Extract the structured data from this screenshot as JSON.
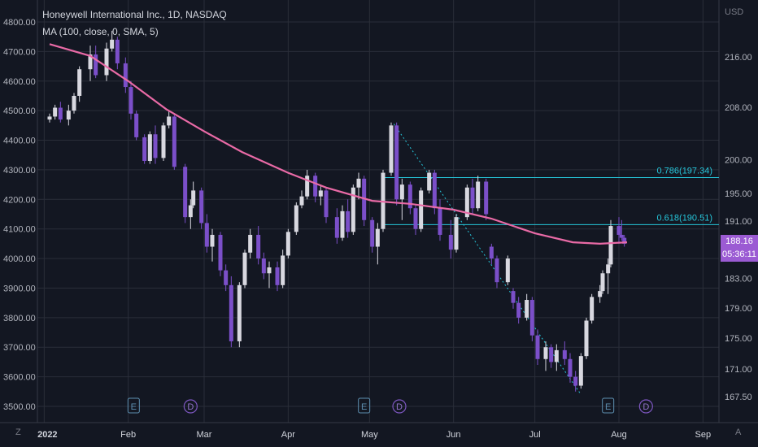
{
  "chart_data": {
    "type": "candlestick",
    "title": "Honeywell International Inc., 1D, NASDAQ",
    "indicator": "MA (100, close, 0, SMA, 5)",
    "currency_label": "USD",
    "left_axis": {
      "ticks": [
        "4800.00",
        "4700.00",
        "4600.00",
        "4500.00",
        "4400.00",
        "4300.00",
        "4200.00",
        "4100.00",
        "4000.00",
        "3900.00",
        "3800.00",
        "3700.00",
        "3600.00",
        "3500.00"
      ],
      "range": [
        3480,
        4840
      ]
    },
    "right_axis": {
      "ticks": [
        "216.00",
        "208.00",
        "200.00",
        "195.00",
        "191.00",
        "183.00",
        "179.00",
        "175.00",
        "171.00",
        "167.50"
      ],
      "scale": "log"
    },
    "x_axis": {
      "ticks": [
        "2022",
        "Feb",
        "Mar",
        "Apr",
        "May",
        "Jun",
        "Jul",
        "Aug",
        "Sep"
      ]
    },
    "current_price": "188.16",
    "countdown": "05:36:11",
    "fib_levels": [
      {
        "label": "0.786(197.34)",
        "value": 197.34
      },
      {
        "label": "0.618(190.51)",
        "value": 190.51
      }
    ],
    "event_markers": [
      {
        "type": "E",
        "date": "2022-02-03"
      },
      {
        "type": "D",
        "date": "2022-02-24"
      },
      {
        "type": "E",
        "date": "2022-04-29"
      },
      {
        "type": "D",
        "date": "2022-05-12"
      },
      {
        "type": "E",
        "date": "2022-07-28"
      },
      {
        "type": "D",
        "date": "2022-08-11"
      }
    ],
    "ma_line": [
      {
        "date": "2022-01-03",
        "value": 4725
      },
      {
        "date": "2022-01-18",
        "value": 4685
      },
      {
        "date": "2022-02-01",
        "value": 4600
      },
      {
        "date": "2022-02-15",
        "value": 4505
      },
      {
        "date": "2022-03-01",
        "value": 4430
      },
      {
        "date": "2022-03-15",
        "value": 4360
      },
      {
        "date": "2022-04-01",
        "value": 4290
      },
      {
        "date": "2022-04-15",
        "value": 4240
      },
      {
        "date": "2022-05-02",
        "value": 4195
      },
      {
        "date": "2022-05-16",
        "value": 4185
      },
      {
        "date": "2022-06-01",
        "value": 4165
      },
      {
        "date": "2022-06-15",
        "value": 4135
      },
      {
        "date": "2022-07-01",
        "value": 4085
      },
      {
        "date": "2022-07-15",
        "value": 4055
      },
      {
        "date": "2022-07-25",
        "value": 4050
      },
      {
        "date": "2022-08-04",
        "value": 4055
      }
    ],
    "candles": [
      {
        "date": "2022-01-03",
        "o": 4470,
        "h": 4490,
        "l": 4460,
        "c": 4480
      },
      {
        "date": "2022-01-05",
        "o": 4480,
        "h": 4520,
        "l": 4470,
        "c": 4510
      },
      {
        "date": "2022-01-07",
        "o": 4510,
        "h": 4530,
        "l": 4460,
        "c": 4470
      },
      {
        "date": "2022-01-10",
        "o": 4470,
        "h": 4520,
        "l": 4450,
        "c": 4500
      },
      {
        "date": "2022-01-12",
        "o": 4500,
        "h": 4560,
        "l": 4490,
        "c": 4550
      },
      {
        "date": "2022-01-14",
        "o": 4550,
        "h": 4650,
        "l": 4530,
        "c": 4640
      },
      {
        "date": "2022-01-18",
        "o": 4640,
        "h": 4720,
        "l": 4600,
        "c": 4690
      },
      {
        "date": "2022-01-20",
        "o": 4690,
        "h": 4720,
        "l": 4610,
        "c": 4620
      },
      {
        "date": "2022-01-24",
        "o": 4620,
        "h": 4730,
        "l": 4600,
        "c": 4710
      },
      {
        "date": "2022-01-26",
        "o": 4710,
        "h": 4770,
        "l": 4700,
        "c": 4740
      },
      {
        "date": "2022-01-28",
        "o": 4740,
        "h": 4750,
        "l": 4640,
        "c": 4660
      },
      {
        "date": "2022-01-31",
        "o": 4660,
        "h": 4680,
        "l": 4560,
        "c": 4580
      },
      {
        "date": "2022-02-02",
        "o": 4580,
        "h": 4600,
        "l": 4470,
        "c": 4490
      },
      {
        "date": "2022-02-04",
        "o": 4490,
        "h": 4500,
        "l": 4400,
        "c": 4410
      },
      {
        "date": "2022-02-07",
        "o": 4410,
        "h": 4420,
        "l": 4320,
        "c": 4330
      },
      {
        "date": "2022-02-09",
        "o": 4330,
        "h": 4430,
        "l": 4320,
        "c": 4420
      },
      {
        "date": "2022-02-11",
        "o": 4420,
        "h": 4450,
        "l": 4320,
        "c": 4340
      },
      {
        "date": "2022-02-14",
        "o": 4340,
        "h": 4460,
        "l": 4330,
        "c": 4450
      },
      {
        "date": "2022-02-16",
        "o": 4450,
        "h": 4500,
        "l": 4440,
        "c": 4480
      },
      {
        "date": "2022-02-18",
        "o": 4480,
        "h": 4490,
        "l": 4300,
        "c": 4310
      },
      {
        "date": "2022-02-22",
        "o": 4310,
        "h": 4320,
        "l": 4120,
        "c": 4140
      },
      {
        "date": "2022-02-24",
        "o": 4140,
        "h": 4200,
        "l": 4100,
        "c": 4180
      },
      {
        "date": "2022-02-25",
        "o": 4180,
        "h": 4260,
        "l": 4170,
        "c": 4230
      },
      {
        "date": "2022-02-28",
        "o": 4230,
        "h": 4240,
        "l": 4100,
        "c": 4120
      },
      {
        "date": "2022-03-02",
        "o": 4120,
        "h": 4150,
        "l": 4020,
        "c": 4040
      },
      {
        "date": "2022-03-04",
        "o": 4040,
        "h": 4100,
        "l": 3990,
        "c": 4080
      },
      {
        "date": "2022-03-07",
        "o": 4080,
        "h": 4090,
        "l": 3940,
        "c": 3960
      },
      {
        "date": "2022-03-09",
        "o": 3960,
        "h": 3980,
        "l": 3890,
        "c": 3910
      },
      {
        "date": "2022-03-11",
        "o": 3910,
        "h": 3940,
        "l": 3700,
        "c": 3720
      },
      {
        "date": "2022-03-14",
        "o": 3720,
        "h": 3920,
        "l": 3700,
        "c": 3910
      },
      {
        "date": "2022-03-16",
        "o": 3910,
        "h": 4030,
        "l": 3900,
        "c": 4020
      },
      {
        "date": "2022-03-18",
        "o": 4020,
        "h": 4100,
        "l": 4000,
        "c": 4080
      },
      {
        "date": "2022-03-21",
        "o": 4080,
        "h": 4110,
        "l": 3980,
        "c": 4000
      },
      {
        "date": "2022-03-23",
        "o": 4000,
        "h": 4020,
        "l": 3930,
        "c": 3950
      },
      {
        "date": "2022-03-25",
        "o": 3950,
        "h": 3990,
        "l": 3900,
        "c": 3970
      },
      {
        "date": "2022-03-28",
        "o": 3970,
        "h": 3990,
        "l": 3890,
        "c": 3910
      },
      {
        "date": "2022-03-30",
        "o": 3910,
        "h": 4030,
        "l": 3900,
        "c": 4010
      },
      {
        "date": "2022-04-01",
        "o": 4010,
        "h": 4100,
        "l": 4000,
        "c": 4090
      },
      {
        "date": "2022-04-04",
        "o": 4090,
        "h": 4190,
        "l": 4080,
        "c": 4180
      },
      {
        "date": "2022-04-06",
        "o": 4180,
        "h": 4230,
        "l": 4170,
        "c": 4210
      },
      {
        "date": "2022-04-08",
        "o": 4210,
        "h": 4300,
        "l": 4200,
        "c": 4280
      },
      {
        "date": "2022-04-11",
        "o": 4280,
        "h": 4290,
        "l": 4190,
        "c": 4210
      },
      {
        "date": "2022-04-13",
        "o": 4210,
        "h": 4250,
        "l": 4180,
        "c": 4230
      },
      {
        "date": "2022-04-15",
        "o": 4230,
        "h": 4240,
        "l": 4120,
        "c": 4140
      },
      {
        "date": "2022-04-19",
        "o": 4140,
        "h": 4170,
        "l": 4050,
        "c": 4070
      },
      {
        "date": "2022-04-21",
        "o": 4070,
        "h": 4180,
        "l": 4060,
        "c": 4160
      },
      {
        "date": "2022-04-23",
        "o": 4160,
        "h": 4200,
        "l": 4070,
        "c": 4090
      },
      {
        "date": "2022-04-25",
        "o": 4090,
        "h": 4250,
        "l": 4080,
        "c": 4240
      },
      {
        "date": "2022-04-27",
        "o": 4240,
        "h": 4290,
        "l": 4200,
        "c": 4270
      },
      {
        "date": "2022-04-29",
        "o": 4270,
        "h": 4280,
        "l": 4110,
        "c": 4130
      },
      {
        "date": "2022-05-02",
        "o": 4130,
        "h": 4140,
        "l": 4020,
        "c": 4040
      },
      {
        "date": "2022-05-04",
        "o": 4040,
        "h": 4120,
        "l": 3980,
        "c": 4100
      },
      {
        "date": "2022-05-06",
        "o": 4100,
        "h": 4300,
        "l": 4090,
        "c": 4290
      },
      {
        "date": "2022-05-09",
        "o": 4290,
        "h": 4460,
        "l": 4280,
        "c": 4450
      },
      {
        "date": "2022-05-11",
        "o": 4450,
        "h": 4460,
        "l": 4180,
        "c": 4200
      },
      {
        "date": "2022-05-13",
        "o": 4200,
        "h": 4270,
        "l": 4130,
        "c": 4250
      },
      {
        "date": "2022-05-16",
        "o": 4250,
        "h": 4260,
        "l": 4150,
        "c": 4170
      },
      {
        "date": "2022-05-18",
        "o": 4170,
        "h": 4180,
        "l": 4080,
        "c": 4100
      },
      {
        "date": "2022-05-20",
        "o": 4100,
        "h": 4240,
        "l": 4090,
        "c": 4230
      },
      {
        "date": "2022-05-23",
        "o": 4230,
        "h": 4300,
        "l": 4220,
        "c": 4290
      },
      {
        "date": "2022-05-25",
        "o": 4290,
        "h": 4300,
        "l": 4150,
        "c": 4170
      },
      {
        "date": "2022-05-27",
        "o": 4170,
        "h": 4200,
        "l": 4060,
        "c": 4080
      },
      {
        "date": "2022-05-31",
        "o": 4080,
        "h": 4130,
        "l": 4000,
        "c": 4030
      },
      {
        "date": "2022-06-02",
        "o": 4030,
        "h": 4150,
        "l": 4020,
        "c": 4140
      },
      {
        "date": "2022-06-06",
        "o": 4140,
        "h": 4250,
        "l": 4130,
        "c": 4240
      },
      {
        "date": "2022-06-08",
        "o": 4240,
        "h": 4270,
        "l": 4150,
        "c": 4170
      },
      {
        "date": "2022-06-10",
        "o": 4170,
        "h": 4280,
        "l": 4160,
        "c": 4260
      },
      {
        "date": "2022-06-13",
        "o": 4260,
        "h": 4270,
        "l": 4130,
        "c": 4150
      },
      {
        "date": "2022-06-15",
        "o": 4040,
        "h": 4050,
        "l": 3980,
        "c": 4000
      },
      {
        "date": "2022-06-17",
        "o": 4000,
        "h": 4010,
        "l": 3900,
        "c": 3920
      },
      {
        "date": "2022-06-21",
        "o": 3920,
        "h": 4010,
        "l": 3910,
        "c": 4000
      },
      {
        "date": "2022-06-23",
        "o": 3890,
        "h": 3900,
        "l": 3830,
        "c": 3850
      },
      {
        "date": "2022-06-25",
        "o": 3850,
        "h": 3870,
        "l": 3780,
        "c": 3800
      },
      {
        "date": "2022-06-28",
        "o": 3800,
        "h": 3880,
        "l": 3790,
        "c": 3860
      },
      {
        "date": "2022-06-30",
        "o": 3860,
        "h": 3870,
        "l": 3720,
        "c": 3740
      },
      {
        "date": "2022-07-02",
        "o": 3740,
        "h": 3760,
        "l": 3640,
        "c": 3660
      },
      {
        "date": "2022-07-05",
        "o": 3660,
        "h": 3720,
        "l": 3620,
        "c": 3700
      },
      {
        "date": "2022-07-07",
        "o": 3700,
        "h": 3710,
        "l": 3630,
        "c": 3650
      },
      {
        "date": "2022-07-09",
        "o": 3650,
        "h": 3710,
        "l": 3620,
        "c": 3690
      },
      {
        "date": "2022-07-12",
        "o": 3690,
        "h": 3720,
        "l": 3640,
        "c": 3660
      },
      {
        "date": "2022-07-14",
        "o": 3660,
        "h": 3680,
        "l": 3580,
        "c": 3600
      },
      {
        "date": "2022-07-16",
        "o": 3600,
        "h": 3620,
        "l": 3550,
        "c": 3570
      },
      {
        "date": "2022-07-18",
        "o": 3570,
        "h": 3680,
        "l": 3560,
        "c": 3670
      },
      {
        "date": "2022-07-20",
        "o": 3670,
        "h": 3800,
        "l": 3660,
        "c": 3790
      },
      {
        "date": "2022-07-22",
        "o": 3790,
        "h": 3880,
        "l": 3780,
        "c": 3870
      },
      {
        "date": "2022-07-25",
        "o": 3870,
        "h": 3910,
        "l": 3850,
        "c": 3890
      },
      {
        "date": "2022-07-26",
        "o": 3890,
        "h": 3960,
        "l": 3880,
        "c": 3950
      },
      {
        "date": "2022-07-28",
        "o": 3950,
        "h": 4000,
        "l": 3880,
        "c": 3980
      },
      {
        "date": "2022-07-29",
        "o": 3980,
        "h": 4130,
        "l": 3970,
        "c": 4110
      },
      {
        "date": "2022-08-01",
        "o": 4110,
        "h": 4140,
        "l": 4050,
        "c": 4080
      },
      {
        "date": "2022-08-02",
        "o": 4080,
        "h": 4130,
        "l": 4060,
        "c": 4070
      },
      {
        "date": "2022-08-03",
        "o": 4070,
        "h": 4080,
        "l": 4040,
        "c": 4050
      }
    ],
    "grid": true,
    "ylim": [
      3480,
      4840
    ]
  },
  "corner_left": "Z",
  "corner_right": "A"
}
